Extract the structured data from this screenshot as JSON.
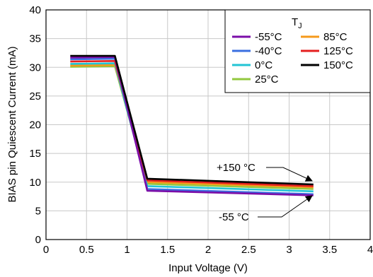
{
  "chart_data": {
    "type": "line",
    "xlabel": "Input Voltage (V)",
    "ylabel": "BIAS pin Quiescent Current (mA)",
    "xlim": [
      0,
      4
    ],
    "ylim": [
      0,
      40
    ],
    "xticks": [
      0,
      0.5,
      1,
      1.5,
      2,
      2.5,
      3,
      3.5,
      4
    ],
    "xtick_labels": [
      "0",
      "0.5",
      "1",
      "1.5",
      "2",
      "2.5",
      "3",
      "3.5",
      "4"
    ],
    "yticks": [
      0,
      5,
      10,
      15,
      20,
      25,
      30,
      35,
      40
    ],
    "ytick_labels": [
      "0",
      "5",
      "10",
      "15",
      "20",
      "25",
      "30",
      "35",
      "40"
    ],
    "grid": true,
    "legend": {
      "placement": "top-right",
      "title_main": "T",
      "title_sub": "J"
    },
    "series": [
      {
        "name": "-55°C",
        "color": "#7B0EA8",
        "x": [
          0.3,
          0.85,
          1.25,
          3.3
        ],
        "y": [
          31.7,
          31.8,
          8.5,
          7.7
        ]
      },
      {
        "name": "-40°C",
        "color": "#3A6FE0",
        "x": [
          0.3,
          0.85,
          1.25,
          3.3
        ],
        "y": [
          31.4,
          31.5,
          8.8,
          7.9
        ]
      },
      {
        "name": "0°C",
        "color": "#22C4D4",
        "x": [
          0.3,
          0.85,
          1.25,
          3.3
        ],
        "y": [
          30.6,
          30.7,
          9.3,
          8.4
        ]
      },
      {
        "name": "25°C",
        "color": "#92C83E",
        "x": [
          0.3,
          0.85,
          1.25,
          3.3
        ],
        "y": [
          30.1,
          30.2,
          9.7,
          8.8
        ]
      },
      {
        "name": "85°C",
        "color": "#F59A1B",
        "x": [
          0.3,
          0.85,
          1.25,
          3.3
        ],
        "y": [
          30.3,
          30.4,
          10.0,
          9.1
        ]
      },
      {
        "name": "125°C",
        "color": "#E41F1F",
        "x": [
          0.3,
          0.85,
          1.25,
          3.3
        ],
        "y": [
          31.0,
          31.1,
          10.3,
          9.3
        ]
      },
      {
        "name": "150°C",
        "color": "#000000",
        "x": [
          0.3,
          0.85,
          1.25,
          3.3
        ],
        "y": [
          32.0,
          32.0,
          10.6,
          9.6
        ]
      }
    ],
    "annotations": [
      {
        "text": "+150 °C",
        "arrow_to": [
          3.3,
          9.6
        ]
      },
      {
        "text": "-55 °C",
        "arrow_to": [
          3.3,
          7.7
        ]
      }
    ]
  }
}
